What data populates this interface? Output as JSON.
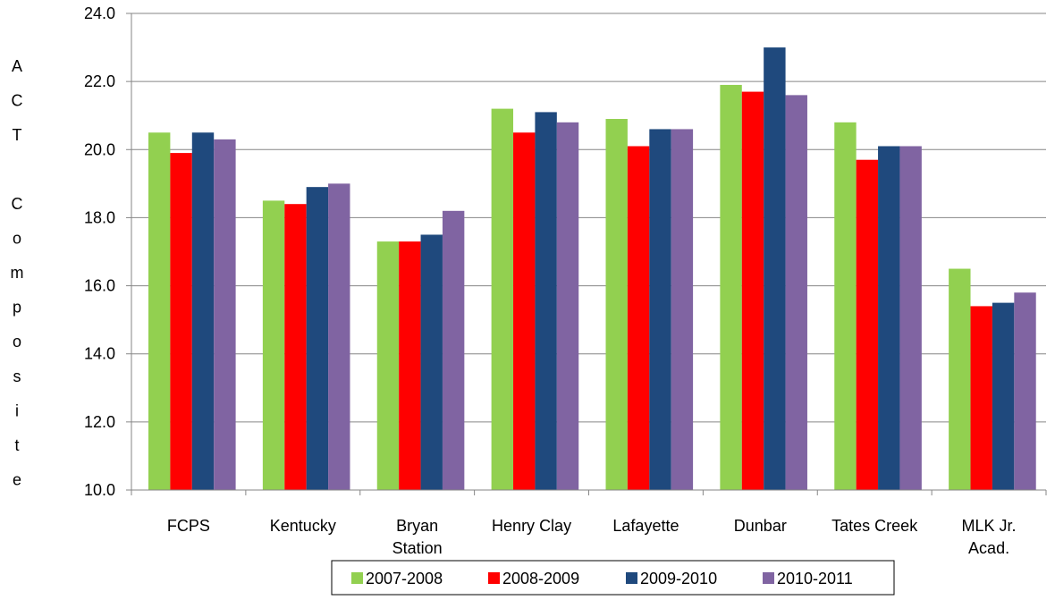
{
  "chart_data": {
    "type": "bar",
    "ylabel": "ACT  Composite",
    "ylim": [
      10.0,
      24.0
    ],
    "yticks": [
      "10.0",
      "12.0",
      "14.0",
      "16.0",
      "18.0",
      "20.0",
      "22.0",
      "24.0"
    ],
    "ytick_values": [
      10,
      12,
      14,
      16,
      18,
      20,
      22,
      24
    ],
    "categories": [
      [
        "FCPS"
      ],
      [
        "Kentucky"
      ],
      [
        "Bryan",
        "Station"
      ],
      [
        "Henry Clay"
      ],
      [
        "Lafayette"
      ],
      [
        "Dunbar"
      ],
      [
        "Tates Creek"
      ],
      [
        "MLK Jr.",
        "Acad."
      ]
    ],
    "series": [
      {
        "name": "2007-2008",
        "color": "#92D050",
        "values": [
          20.5,
          18.5,
          17.3,
          21.2,
          20.9,
          21.9,
          20.8,
          16.5
        ]
      },
      {
        "name": "2008-2009",
        "color": "#FF0000",
        "values": [
          19.9,
          18.4,
          17.3,
          20.5,
          20.1,
          21.7,
          19.7,
          15.4
        ]
      },
      {
        "name": "2009-2010",
        "color": "#1F497D",
        "values": [
          20.5,
          18.9,
          17.5,
          21.1,
          20.6,
          23.0,
          20.1,
          15.5
        ]
      },
      {
        "name": "2010-2011",
        "color": "#8064A2",
        "values": [
          20.3,
          19.0,
          18.2,
          20.8,
          20.6,
          21.6,
          20.1,
          15.8
        ]
      }
    ],
    "grid": true,
    "legend_position": "bottom"
  }
}
